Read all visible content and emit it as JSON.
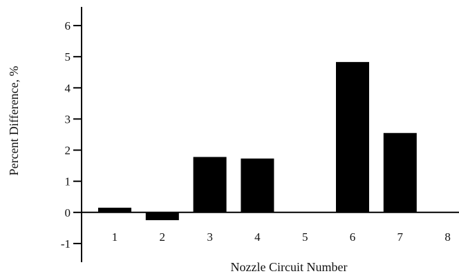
{
  "chart_data": {
    "type": "bar",
    "categories": [
      "1",
      "2",
      "3",
      "4",
      "5",
      "6",
      "7",
      "8"
    ],
    "values": [
      0.15,
      -0.25,
      1.78,
      1.73,
      0.0,
      4.83,
      2.55,
      0.0
    ],
    "title": "",
    "xlabel": "Nozzle Circuit Number",
    "ylabel": "Percent Difference, %",
    "ylim": [
      -1.6,
      6.6
    ],
    "yticks": [
      "-1",
      "0",
      "1",
      "2",
      "3",
      "4",
      "5",
      "6"
    ],
    "grid": false,
    "bar_color": "#000000"
  }
}
